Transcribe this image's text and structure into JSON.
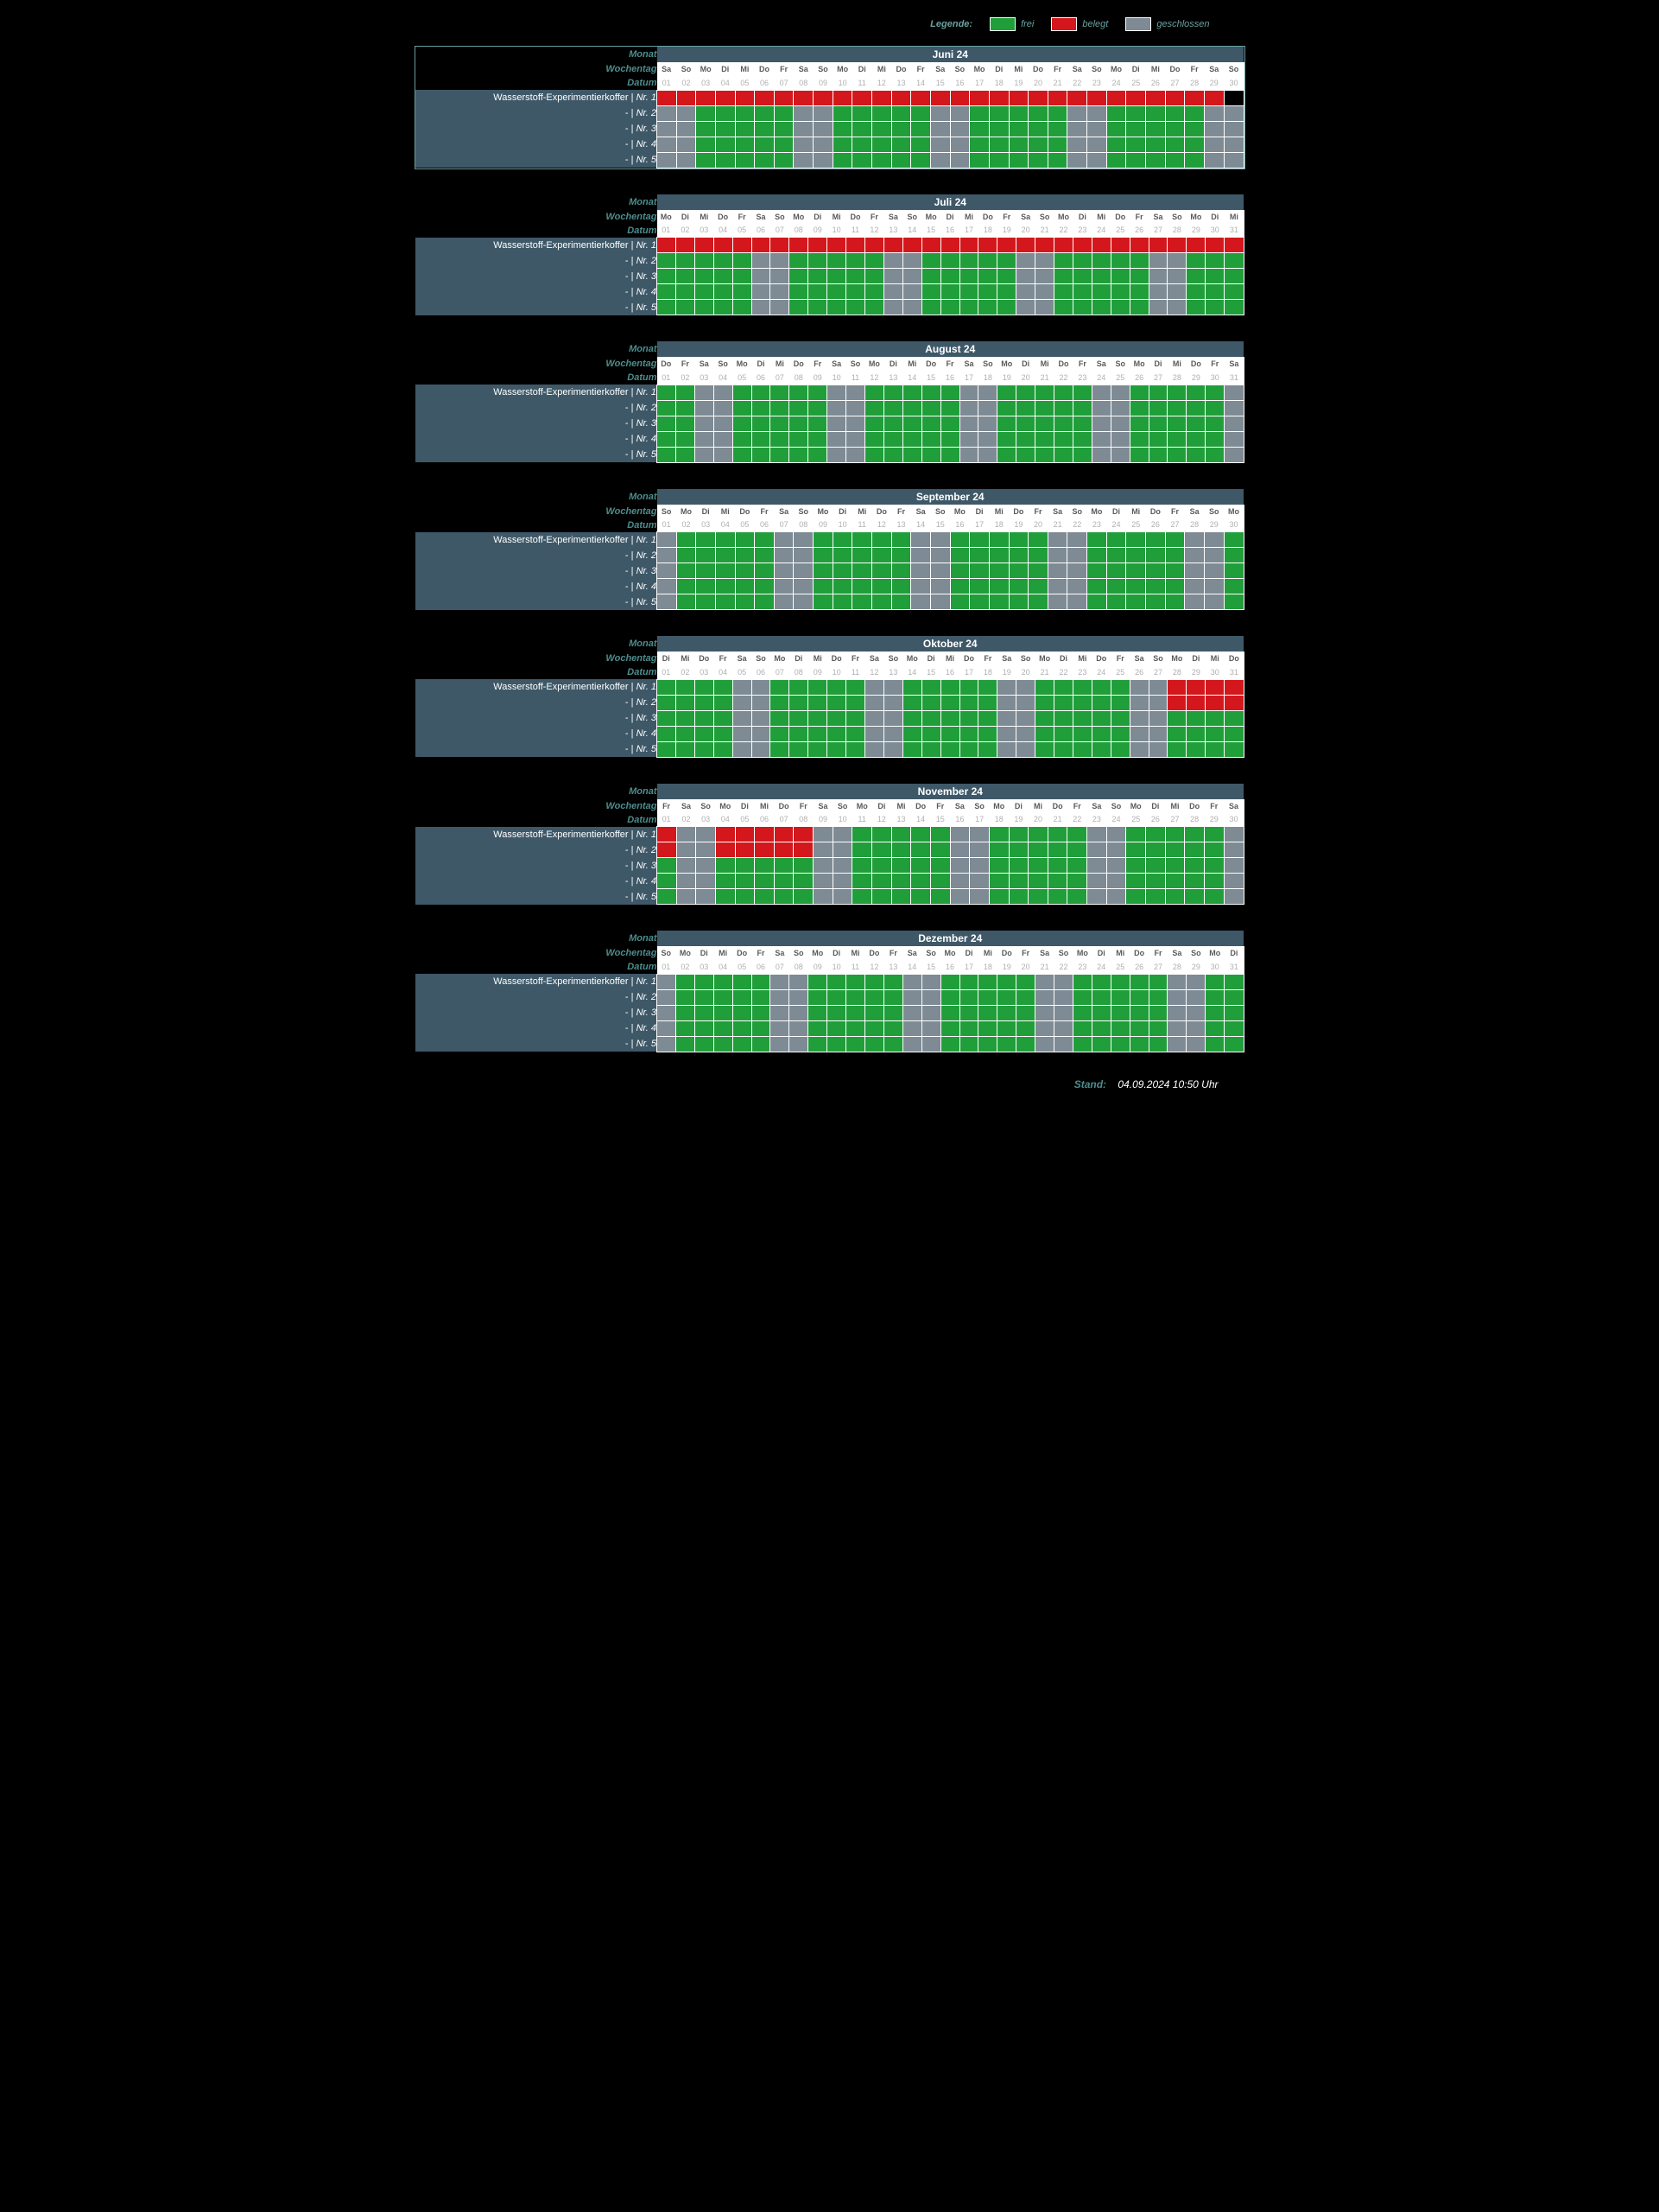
{
  "legend": {
    "label": "Legende:",
    "items": [
      {
        "label": "frei",
        "color": "#1f9e3a"
      },
      {
        "label": "belegt",
        "color": "#d3171c"
      },
      {
        "label": "geschlossen",
        "color": "#7e8a94"
      }
    ]
  },
  "colors": {
    "free": "#1f9e3a",
    "busy": "#d3171c",
    "closed": "#7e8a94",
    "off": "#000000",
    "panel": "#3e5868",
    "header_text": "#4d8c8c"
  },
  "header_labels": {
    "month": "Monat",
    "weekday": "Wochentag",
    "date": "Datum"
  },
  "weekdays_de": [
    "Mo",
    "Di",
    "Mi",
    "Do",
    "Fr",
    "Sa",
    "So"
  ],
  "item_main_label": "Wasserstoff-Experimentierkoffer |",
  "item_sub_prefix": "- |",
  "item_num_prefix": "Nr.",
  "footer": {
    "label": "Stand:",
    "value": "04.09.2024 10:50 Uhr"
  },
  "months": [
    {
      "title": "Juni 24",
      "selected": true,
      "year": 2024,
      "month_index": 5,
      "days": 30,
      "rows": [
        [
          "b",
          "b",
          "b",
          "b",
          "b",
          "b",
          "b",
          "b",
          "b",
          "b",
          "b",
          "b",
          "b",
          "b",
          "b",
          "b",
          "b",
          "b",
          "b",
          "b",
          "b",
          "b",
          "b",
          "b",
          "b",
          "b",
          "b",
          "b",
          "b",
          "k"
        ],
        [
          "g",
          "g",
          "f",
          "f",
          "f",
          "f",
          "f",
          "g",
          "g",
          "f",
          "f",
          "f",
          "f",
          "f",
          "g",
          "g",
          "f",
          "f",
          "f",
          "f",
          "f",
          "g",
          "g",
          "f",
          "f",
          "f",
          "f",
          "f",
          "g",
          "g"
        ],
        [
          "g",
          "g",
          "f",
          "f",
          "f",
          "f",
          "f",
          "g",
          "g",
          "f",
          "f",
          "f",
          "f",
          "f",
          "g",
          "g",
          "f",
          "f",
          "f",
          "f",
          "f",
          "g",
          "g",
          "f",
          "f",
          "f",
          "f",
          "f",
          "g",
          "g"
        ],
        [
          "g",
          "g",
          "f",
          "f",
          "f",
          "f",
          "f",
          "g",
          "g",
          "f",
          "f",
          "f",
          "f",
          "f",
          "g",
          "g",
          "f",
          "f",
          "f",
          "f",
          "f",
          "g",
          "g",
          "f",
          "f",
          "f",
          "f",
          "f",
          "g",
          "g"
        ],
        [
          "g",
          "g",
          "f",
          "f",
          "f",
          "f",
          "f",
          "g",
          "g",
          "f",
          "f",
          "f",
          "f",
          "f",
          "g",
          "g",
          "f",
          "f",
          "f",
          "f",
          "f",
          "g",
          "g",
          "f",
          "f",
          "f",
          "f",
          "f",
          "g",
          "g"
        ]
      ]
    },
    {
      "title": "Juli 24",
      "year": 2024,
      "month_index": 6,
      "days": 31,
      "rows": [
        [
          "b",
          "b",
          "b",
          "b",
          "b",
          "b",
          "b",
          "b",
          "b",
          "b",
          "b",
          "b",
          "b",
          "b",
          "b",
          "b",
          "b",
          "b",
          "b",
          "b",
          "b",
          "b",
          "b",
          "b",
          "b",
          "b",
          "b",
          "b",
          "b",
          "b",
          "b"
        ],
        [
          "f",
          "f",
          "f",
          "f",
          "f",
          "g",
          "g",
          "f",
          "f",
          "f",
          "f",
          "f",
          "g",
          "g",
          "f",
          "f",
          "f",
          "f",
          "f",
          "g",
          "g",
          "f",
          "f",
          "f",
          "f",
          "f",
          "g",
          "g",
          "f",
          "f",
          "f"
        ],
        [
          "f",
          "f",
          "f",
          "f",
          "f",
          "g",
          "g",
          "f",
          "f",
          "f",
          "f",
          "f",
          "g",
          "g",
          "f",
          "f",
          "f",
          "f",
          "f",
          "g",
          "g",
          "f",
          "f",
          "f",
          "f",
          "f",
          "g",
          "g",
          "f",
          "f",
          "f"
        ],
        [
          "f",
          "f",
          "f",
          "f",
          "f",
          "g",
          "g",
          "f",
          "f",
          "f",
          "f",
          "f",
          "g",
          "g",
          "f",
          "f",
          "f",
          "f",
          "f",
          "g",
          "g",
          "f",
          "f",
          "f",
          "f",
          "f",
          "g",
          "g",
          "f",
          "f",
          "f"
        ],
        [
          "f",
          "f",
          "f",
          "f",
          "f",
          "g",
          "g",
          "f",
          "f",
          "f",
          "f",
          "f",
          "g",
          "g",
          "f",
          "f",
          "f",
          "f",
          "f",
          "g",
          "g",
          "f",
          "f",
          "f",
          "f",
          "f",
          "g",
          "g",
          "f",
          "f",
          "f"
        ]
      ]
    },
    {
      "title": "August 24",
      "year": 2024,
      "month_index": 7,
      "days": 31,
      "rows": [
        [
          "f",
          "f",
          "g",
          "g",
          "f",
          "f",
          "f",
          "f",
          "f",
          "g",
          "g",
          "f",
          "f",
          "f",
          "f",
          "f",
          "g",
          "g",
          "f",
          "f",
          "f",
          "f",
          "f",
          "g",
          "g",
          "f",
          "f",
          "f",
          "f",
          "f",
          "g"
        ],
        [
          "f",
          "f",
          "g",
          "g",
          "f",
          "f",
          "f",
          "f",
          "f",
          "g",
          "g",
          "f",
          "f",
          "f",
          "f",
          "f",
          "g",
          "g",
          "f",
          "f",
          "f",
          "f",
          "f",
          "g",
          "g",
          "f",
          "f",
          "f",
          "f",
          "f",
          "g"
        ],
        [
          "f",
          "f",
          "g",
          "g",
          "f",
          "f",
          "f",
          "f",
          "f",
          "g",
          "g",
          "f",
          "f",
          "f",
          "f",
          "f",
          "g",
          "g",
          "f",
          "f",
          "f",
          "f",
          "f",
          "g",
          "g",
          "f",
          "f",
          "f",
          "f",
          "f",
          "g"
        ],
        [
          "f",
          "f",
          "g",
          "g",
          "f",
          "f",
          "f",
          "f",
          "f",
          "g",
          "g",
          "f",
          "f",
          "f",
          "f",
          "f",
          "g",
          "g",
          "f",
          "f",
          "f",
          "f",
          "f",
          "g",
          "g",
          "f",
          "f",
          "f",
          "f",
          "f",
          "g"
        ],
        [
          "f",
          "f",
          "g",
          "g",
          "f",
          "f",
          "f",
          "f",
          "f",
          "g",
          "g",
          "f",
          "f",
          "f",
          "f",
          "f",
          "g",
          "g",
          "f",
          "f",
          "f",
          "f",
          "f",
          "g",
          "g",
          "f",
          "f",
          "f",
          "f",
          "f",
          "g"
        ]
      ]
    },
    {
      "title": "September 24",
      "year": 2024,
      "month_index": 8,
      "days": 30,
      "rows": [
        [
          "g",
          "f",
          "f",
          "f",
          "f",
          "f",
          "g",
          "g",
          "f",
          "f",
          "f",
          "f",
          "f",
          "g",
          "g",
          "f",
          "f",
          "f",
          "f",
          "f",
          "g",
          "g",
          "f",
          "f",
          "f",
          "f",
          "f",
          "g",
          "g",
          "f"
        ],
        [
          "g",
          "f",
          "f",
          "f",
          "f",
          "f",
          "g",
          "g",
          "f",
          "f",
          "f",
          "f",
          "f",
          "g",
          "g",
          "f",
          "f",
          "f",
          "f",
          "f",
          "g",
          "g",
          "f",
          "f",
          "f",
          "f",
          "f",
          "g",
          "g",
          "f"
        ],
        [
          "g",
          "f",
          "f",
          "f",
          "f",
          "f",
          "g",
          "g",
          "f",
          "f",
          "f",
          "f",
          "f",
          "g",
          "g",
          "f",
          "f",
          "f",
          "f",
          "f",
          "g",
          "g",
          "f",
          "f",
          "f",
          "f",
          "f",
          "g",
          "g",
          "f"
        ],
        [
          "g",
          "f",
          "f",
          "f",
          "f",
          "f",
          "g",
          "g",
          "f",
          "f",
          "f",
          "f",
          "f",
          "g",
          "g",
          "f",
          "f",
          "f",
          "f",
          "f",
          "g",
          "g",
          "f",
          "f",
          "f",
          "f",
          "f",
          "g",
          "g",
          "f"
        ],
        [
          "g",
          "f",
          "f",
          "f",
          "f",
          "f",
          "g",
          "g",
          "f",
          "f",
          "f",
          "f",
          "f",
          "g",
          "g",
          "f",
          "f",
          "f",
          "f",
          "f",
          "g",
          "g",
          "f",
          "f",
          "f",
          "f",
          "f",
          "g",
          "g",
          "f"
        ]
      ]
    },
    {
      "title": "Oktober 24",
      "year": 2024,
      "month_index": 9,
      "days": 31,
      "rows": [
        [
          "f",
          "f",
          "f",
          "f",
          "g",
          "g",
          "f",
          "f",
          "f",
          "f",
          "f",
          "g",
          "g",
          "f",
          "f",
          "f",
          "f",
          "f",
          "g",
          "g",
          "f",
          "f",
          "f",
          "f",
          "f",
          "g",
          "g",
          "b",
          "b",
          "b",
          "b"
        ],
        [
          "f",
          "f",
          "f",
          "f",
          "g",
          "g",
          "f",
          "f",
          "f",
          "f",
          "f",
          "g",
          "g",
          "f",
          "f",
          "f",
          "f",
          "f",
          "g",
          "g",
          "f",
          "f",
          "f",
          "f",
          "f",
          "g",
          "g",
          "b",
          "b",
          "b",
          "b"
        ],
        [
          "f",
          "f",
          "f",
          "f",
          "g",
          "g",
          "f",
          "f",
          "f",
          "f",
          "f",
          "g",
          "g",
          "f",
          "f",
          "f",
          "f",
          "f",
          "g",
          "g",
          "f",
          "f",
          "f",
          "f",
          "f",
          "g",
          "g",
          "f",
          "f",
          "f",
          "f"
        ],
        [
          "f",
          "f",
          "f",
          "f",
          "g",
          "g",
          "f",
          "f",
          "f",
          "f",
          "f",
          "g",
          "g",
          "f",
          "f",
          "f",
          "f",
          "f",
          "g",
          "g",
          "f",
          "f",
          "f",
          "f",
          "f",
          "g",
          "g",
          "f",
          "f",
          "f",
          "f"
        ],
        [
          "f",
          "f",
          "f",
          "f",
          "g",
          "g",
          "f",
          "f",
          "f",
          "f",
          "f",
          "g",
          "g",
          "f",
          "f",
          "f",
          "f",
          "f",
          "g",
          "g",
          "f",
          "f",
          "f",
          "f",
          "f",
          "g",
          "g",
          "f",
          "f",
          "f",
          "f"
        ]
      ]
    },
    {
      "title": "November 24",
      "year": 2024,
      "month_index": 10,
      "days": 30,
      "rows": [
        [
          "b",
          "g",
          "g",
          "b",
          "b",
          "b",
          "b",
          "b",
          "g",
          "g",
          "f",
          "f",
          "f",
          "f",
          "f",
          "g",
          "g",
          "f",
          "f",
          "f",
          "f",
          "f",
          "g",
          "g",
          "f",
          "f",
          "f",
          "f",
          "f",
          "g"
        ],
        [
          "b",
          "g",
          "g",
          "b",
          "b",
          "b",
          "b",
          "b",
          "g",
          "g",
          "f",
          "f",
          "f",
          "f",
          "f",
          "g",
          "g",
          "f",
          "f",
          "f",
          "f",
          "f",
          "g",
          "g",
          "f",
          "f",
          "f",
          "f",
          "f",
          "g"
        ],
        [
          "f",
          "g",
          "g",
          "f",
          "f",
          "f",
          "f",
          "f",
          "g",
          "g",
          "f",
          "f",
          "f",
          "f",
          "f",
          "g",
          "g",
          "f",
          "f",
          "f",
          "f",
          "f",
          "g",
          "g",
          "f",
          "f",
          "f",
          "f",
          "f",
          "g"
        ],
        [
          "f",
          "g",
          "g",
          "f",
          "f",
          "f",
          "f",
          "f",
          "g",
          "g",
          "f",
          "f",
          "f",
          "f",
          "f",
          "g",
          "g",
          "f",
          "f",
          "f",
          "f",
          "f",
          "g",
          "g",
          "f",
          "f",
          "f",
          "f",
          "f",
          "g"
        ],
        [
          "f",
          "g",
          "g",
          "f",
          "f",
          "f",
          "f",
          "f",
          "g",
          "g",
          "f",
          "f",
          "f",
          "f",
          "f",
          "g",
          "g",
          "f",
          "f",
          "f",
          "f",
          "f",
          "g",
          "g",
          "f",
          "f",
          "f",
          "f",
          "f",
          "g"
        ]
      ]
    },
    {
      "title": "Dezember 24",
      "year": 2024,
      "month_index": 11,
      "days": 31,
      "rows": [
        [
          "g",
          "f",
          "f",
          "f",
          "f",
          "f",
          "g",
          "g",
          "f",
          "f",
          "f",
          "f",
          "f",
          "g",
          "g",
          "f",
          "f",
          "f",
          "f",
          "f",
          "g",
          "g",
          "f",
          "f",
          "f",
          "f",
          "f",
          "g",
          "g",
          "f",
          "f"
        ],
        [
          "g",
          "f",
          "f",
          "f",
          "f",
          "f",
          "g",
          "g",
          "f",
          "f",
          "f",
          "f",
          "f",
          "g",
          "g",
          "f",
          "f",
          "f",
          "f",
          "f",
          "g",
          "g",
          "f",
          "f",
          "f",
          "f",
          "f",
          "g",
          "g",
          "f",
          "f"
        ],
        [
          "g",
          "f",
          "f",
          "f",
          "f",
          "f",
          "g",
          "g",
          "f",
          "f",
          "f",
          "f",
          "f",
          "g",
          "g",
          "f",
          "f",
          "f",
          "f",
          "f",
          "g",
          "g",
          "f",
          "f",
          "f",
          "f",
          "f",
          "g",
          "g",
          "f",
          "f"
        ],
        [
          "g",
          "f",
          "f",
          "f",
          "f",
          "f",
          "g",
          "g",
          "f",
          "f",
          "f",
          "f",
          "f",
          "g",
          "g",
          "f",
          "f",
          "f",
          "f",
          "f",
          "g",
          "g",
          "f",
          "f",
          "f",
          "f",
          "f",
          "g",
          "g",
          "f",
          "f"
        ],
        [
          "g",
          "f",
          "f",
          "f",
          "f",
          "f",
          "g",
          "g",
          "f",
          "f",
          "f",
          "f",
          "f",
          "g",
          "g",
          "f",
          "f",
          "f",
          "f",
          "f",
          "g",
          "g",
          "f",
          "f",
          "f",
          "f",
          "f",
          "g",
          "g",
          "f",
          "f"
        ]
      ]
    }
  ]
}
